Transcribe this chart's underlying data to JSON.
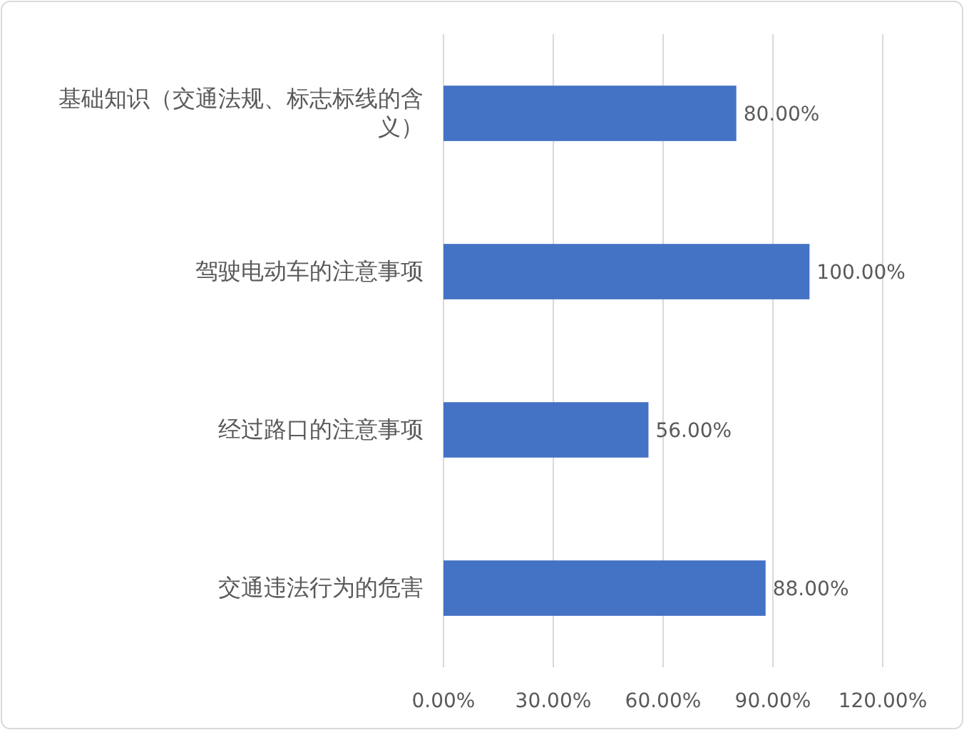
{
  "chart_data": {
    "type": "bar",
    "orientation": "horizontal",
    "categories": [
      "基础知识（交通法规、标志标线的含义）",
      "驾驶电动车的注意事项",
      "经过路口的注意事项",
      "交通违法行为的危害"
    ],
    "values": [
      80,
      100,
      56,
      88
    ],
    "value_labels": [
      "80.00%",
      "100.00%",
      "56.00%",
      "88.00%"
    ],
    "color": "#4472c4",
    "xlim": [
      0,
      120
    ],
    "xticks": [
      {
        "value": 0,
        "label": "0.00%"
      },
      {
        "value": 30,
        "label": "30.00%"
      },
      {
        "value": 60,
        "label": "60.00%"
      },
      {
        "value": 90,
        "label": "90.00%"
      },
      {
        "value": 120,
        "label": "120.00%"
      }
    ],
    "grid": "x"
  }
}
